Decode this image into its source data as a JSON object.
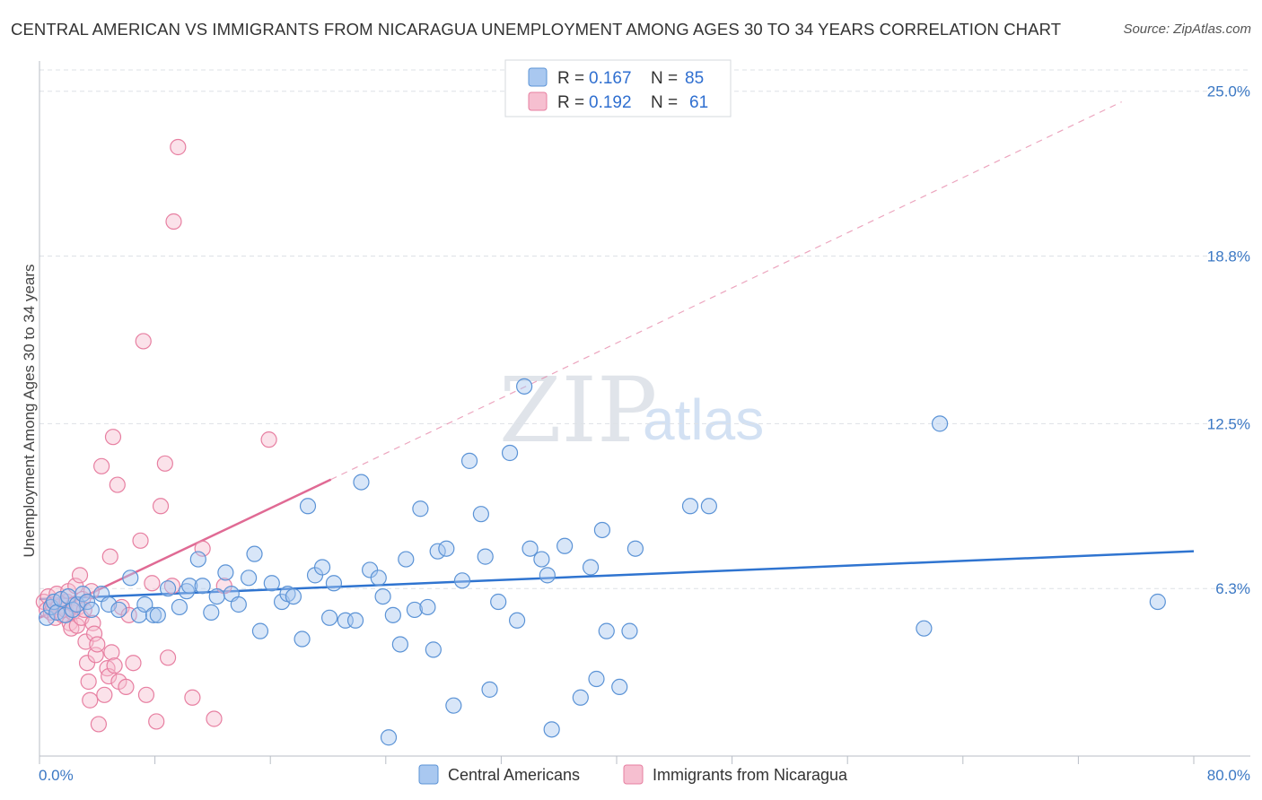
{
  "header": {
    "title": "CENTRAL AMERICAN VS IMMIGRANTS FROM NICARAGUA UNEMPLOYMENT AMONG AGES 30 TO 34 YEARS CORRELATION CHART",
    "source": "Source: ZipAtlas.com"
  },
  "watermark": {
    "zip": "ZIP",
    "atlas": "atlas"
  },
  "colors": {
    "blue_fill": "#a9c8f0",
    "blue_stroke": "#5b93d6",
    "blue_line": "#2f74d0",
    "pink_fill": "#f6bfd0",
    "pink_stroke": "#e77fa1",
    "pink_line": "#e06a94",
    "grid": "#dde1e6",
    "tick_text": "#3b78c4"
  },
  "chart_data": {
    "type": "scatter",
    "title": "CENTRAL AMERICAN VS IMMIGRANTS FROM NICARAGUA UNEMPLOYMENT AMONG AGES 30 TO 34 YEARS CORRELATION CHART",
    "xlabel": "",
    "ylabel": "Unemployment Among Ages 30 to 34 years",
    "xlim": [
      0,
      80
    ],
    "ylim": [
      0,
      25.8
    ],
    "x_tick_labels": {
      "min": "0.0%",
      "max": "80.0%"
    },
    "y_ticks": [
      {
        "value": 6.3,
        "label": "6.3%"
      },
      {
        "value": 12.5,
        "label": "12.5%"
      },
      {
        "value": 18.8,
        "label": "18.8%"
      },
      {
        "value": 25.0,
        "label": "25.0%"
      }
    ],
    "legend": {
      "rows": [
        {
          "r_label": "R =",
          "r_value": "0.167",
          "n_label": "N =",
          "n_value": "85"
        },
        {
          "r_label": "R =",
          "r_value": "0.192",
          "n_label": "N =",
          "n_value": "61"
        }
      ]
    },
    "series": [
      {
        "name": "Central Americans",
        "color": "blue",
        "trend": {
          "x": [
            0,
            80
          ],
          "y": [
            5.9,
            7.7
          ],
          "style": "solid"
        },
        "points": [
          [
            0.5,
            5.2
          ],
          [
            0.8,
            5.6
          ],
          [
            1.0,
            5.8
          ],
          [
            1.2,
            5.4
          ],
          [
            1.5,
            5.9
          ],
          [
            1.8,
            5.3
          ],
          [
            2.0,
            6.0
          ],
          [
            2.3,
            5.5
          ],
          [
            2.6,
            5.7
          ],
          [
            3.0,
            6.1
          ],
          [
            3.3,
            5.8
          ],
          [
            3.6,
            5.5
          ],
          [
            4.3,
            6.1
          ],
          [
            4.8,
            5.7
          ],
          [
            5.5,
            5.5
          ],
          [
            6.3,
            6.7
          ],
          [
            6.9,
            5.3
          ],
          [
            7.3,
            5.7
          ],
          [
            7.9,
            5.3
          ],
          [
            8.2,
            5.3
          ],
          [
            8.9,
            6.3
          ],
          [
            9.7,
            5.6
          ],
          [
            10.2,
            6.2
          ],
          [
            10.4,
            6.4
          ],
          [
            11.0,
            7.4
          ],
          [
            11.3,
            6.4
          ],
          [
            11.9,
            5.4
          ],
          [
            12.3,
            6.0
          ],
          [
            12.9,
            6.9
          ],
          [
            13.3,
            6.1
          ],
          [
            13.8,
            5.7
          ],
          [
            14.5,
            6.7
          ],
          [
            14.9,
            7.6
          ],
          [
            15.3,
            4.7
          ],
          [
            16.1,
            6.5
          ],
          [
            16.8,
            5.8
          ],
          [
            17.2,
            6.1
          ],
          [
            17.6,
            6.0
          ],
          [
            18.2,
            4.4
          ],
          [
            18.6,
            9.4
          ],
          [
            19.1,
            6.8
          ],
          [
            19.6,
            7.1
          ],
          [
            20.1,
            5.2
          ],
          [
            20.4,
            6.5
          ],
          [
            21.2,
            5.1
          ],
          [
            21.9,
            5.1
          ],
          [
            22.3,
            10.3
          ],
          [
            22.9,
            7.0
          ],
          [
            23.5,
            6.7
          ],
          [
            23.8,
            6.0
          ],
          [
            24.2,
            0.7
          ],
          [
            24.5,
            5.3
          ],
          [
            25.0,
            4.2
          ],
          [
            25.4,
            7.4
          ],
          [
            26.0,
            5.5
          ],
          [
            26.4,
            9.3
          ],
          [
            26.9,
            5.6
          ],
          [
            27.3,
            4.0
          ],
          [
            27.6,
            7.7
          ],
          [
            28.2,
            7.8
          ],
          [
            28.7,
            1.9
          ],
          [
            29.3,
            6.6
          ],
          [
            29.8,
            11.1
          ],
          [
            30.6,
            9.1
          ],
          [
            30.9,
            7.5
          ],
          [
            31.2,
            2.5
          ],
          [
            31.8,
            5.8
          ],
          [
            32.6,
            11.4
          ],
          [
            33.1,
            5.1
          ],
          [
            33.6,
            13.9
          ],
          [
            34.0,
            7.8
          ],
          [
            34.8,
            7.4
          ],
          [
            35.2,
            6.8
          ],
          [
            35.5,
            1.0
          ],
          [
            36.4,
            7.9
          ],
          [
            37.5,
            2.2
          ],
          [
            38.2,
            7.1
          ],
          [
            38.6,
            2.9
          ],
          [
            39.0,
            8.5
          ],
          [
            39.3,
            4.7
          ],
          [
            40.2,
            2.6
          ],
          [
            40.9,
            4.7
          ],
          [
            41.3,
            7.8
          ],
          [
            45.1,
            9.4
          ],
          [
            46.4,
            9.4
          ],
          [
            61.3,
            4.8
          ],
          [
            62.4,
            12.5
          ],
          [
            77.5,
            5.8
          ]
        ]
      },
      {
        "name": "Immigrants from Nicaragua",
        "color": "pink",
        "trend": {
          "x": [
            0,
            20.2
          ],
          "y": [
            5.2,
            10.4
          ],
          "style": "solid",
          "extended_x": [
            20.2,
            75
          ],
          "extended_y": [
            10.4,
            24.6
          ],
          "extended_style": "dashed"
        },
        "points": [
          [
            0.3,
            5.8
          ],
          [
            0.5,
            5.5
          ],
          [
            0.6,
            6.0
          ],
          [
            0.8,
            5.4
          ],
          [
            0.9,
            5.7
          ],
          [
            1.1,
            5.2
          ],
          [
            1.2,
            6.1
          ],
          [
            1.3,
            5.6
          ],
          [
            1.5,
            5.9
          ],
          [
            1.6,
            5.3
          ],
          [
            1.8,
            5.5
          ],
          [
            1.9,
            5.8
          ],
          [
            2.0,
            6.2
          ],
          [
            2.1,
            5.0
          ],
          [
            2.2,
            4.8
          ],
          [
            2.3,
            5.4
          ],
          [
            2.4,
            5.7
          ],
          [
            2.5,
            6.4
          ],
          [
            2.6,
            4.9
          ],
          [
            2.7,
            5.6
          ],
          [
            2.8,
            6.8
          ],
          [
            2.9,
            5.2
          ],
          [
            3.0,
            5.9
          ],
          [
            3.1,
            5.5
          ],
          [
            3.2,
            4.3
          ],
          [
            3.3,
            3.5
          ],
          [
            3.4,
            2.8
          ],
          [
            3.5,
            2.1
          ],
          [
            3.6,
            6.2
          ],
          [
            3.7,
            5.0
          ],
          [
            3.8,
            4.6
          ],
          [
            3.9,
            3.8
          ],
          [
            4.0,
            4.2
          ],
          [
            4.1,
            1.2
          ],
          [
            4.3,
            10.9
          ],
          [
            4.5,
            2.3
          ],
          [
            4.7,
            3.3
          ],
          [
            4.8,
            3.0
          ],
          [
            4.9,
            7.5
          ],
          [
            5.0,
            3.9
          ],
          [
            5.1,
            12.0
          ],
          [
            5.2,
            3.4
          ],
          [
            5.4,
            10.2
          ],
          [
            5.5,
            2.8
          ],
          [
            5.7,
            5.6
          ],
          [
            6.0,
            2.6
          ],
          [
            6.2,
            5.3
          ],
          [
            6.5,
            3.5
          ],
          [
            7.0,
            8.1
          ],
          [
            7.2,
            15.6
          ],
          [
            7.4,
            2.3
          ],
          [
            7.8,
            6.5
          ],
          [
            8.1,
            1.3
          ],
          [
            8.4,
            9.4
          ],
          [
            8.7,
            11.0
          ],
          [
            8.9,
            3.7
          ],
          [
            9.2,
            6.4
          ],
          [
            9.3,
            20.1
          ],
          [
            9.6,
            22.9
          ],
          [
            10.6,
            2.2
          ],
          [
            11.3,
            7.8
          ],
          [
            12.1,
            1.4
          ],
          [
            12.8,
            6.4
          ],
          [
            15.9,
            11.9
          ]
        ]
      }
    ]
  }
}
